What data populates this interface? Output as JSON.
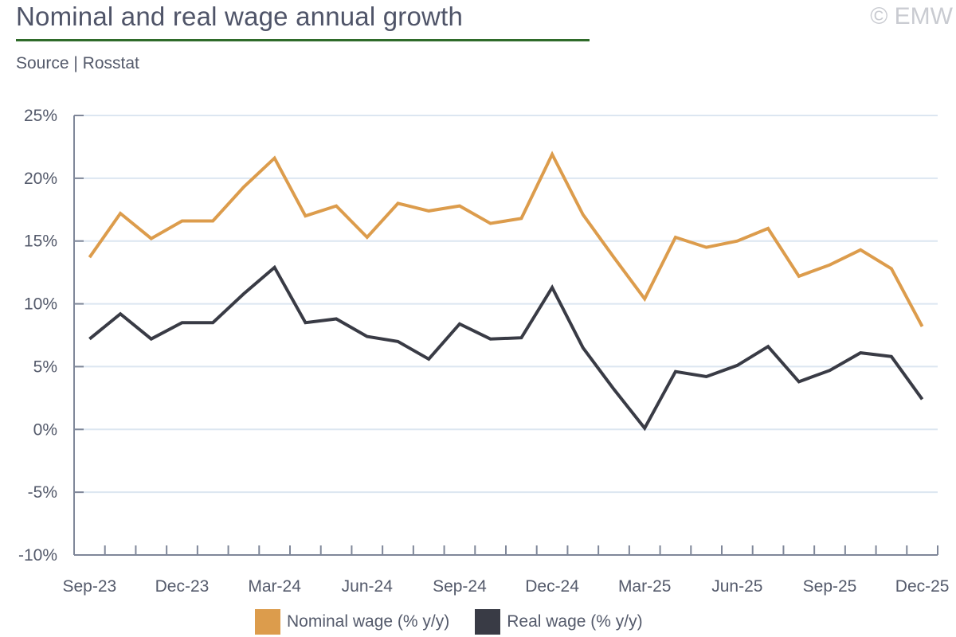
{
  "header": {
    "title": "Nominal and real wage annual growth",
    "source": "Source | Rosstat",
    "copyright": "© EMW"
  },
  "chart_data": {
    "type": "line",
    "title": "Nominal and real wage annual growth",
    "ylim": [
      -10,
      25
    ],
    "yticks": [
      25,
      20,
      15,
      10,
      5,
      0,
      -5,
      -10
    ],
    "ytick_labels": [
      "25%",
      "20%",
      "15%",
      "10%",
      "5%",
      "0%",
      "-5%",
      "-10%"
    ],
    "grid": true,
    "legend": "bottom",
    "x": [
      "Sep-23",
      "Oct-23",
      "Nov-23",
      "Dec-23",
      "Jan-24",
      "Feb-24",
      "Mar-24",
      "Apr-24",
      "May-24",
      "Jun-24",
      "Jul-24",
      "Aug-24",
      "Sep-24",
      "Oct-24",
      "Nov-24",
      "Dec-24",
      "Jan-25",
      "Feb-25",
      "Mar-25",
      "Apr-25",
      "May-25",
      "Jun-25",
      "Jul-25",
      "Aug-25",
      "Sep-25",
      "Oct-25",
      "Nov-25",
      "Dec-25"
    ],
    "xtick_labels": [
      "Sep-23",
      "Dec-23",
      "Mar-24",
      "Jun-24",
      "Sep-24",
      "Dec-24",
      "Mar-25",
      "Jun-25",
      "Sep-25",
      "Dec-25"
    ],
    "series": [
      {
        "name": "Nominal wage (% y/y)",
        "color": "#dc9c4c",
        "values": [
          13.7,
          17.2,
          15.2,
          16.6,
          16.6,
          19.3,
          21.6,
          17.0,
          17.8,
          15.3,
          18.0,
          17.4,
          17.8,
          16.4,
          16.8,
          21.9,
          17.1,
          13.7,
          10.4,
          15.3,
          14.5,
          15.0,
          16.0,
          12.2,
          13.1,
          14.3,
          12.8,
          8.2
        ]
      },
      {
        "name": "Real wage (% y/y)",
        "color": "#393b45",
        "values": [
          7.2,
          9.2,
          7.2,
          8.5,
          8.5,
          10.8,
          12.9,
          8.5,
          8.8,
          7.4,
          7.0,
          5.6,
          8.4,
          7.2,
          7.3,
          11.3,
          6.5,
          3.2,
          0.1,
          4.6,
          4.2,
          5.1,
          6.6,
          3.8,
          4.7,
          6.1,
          5.8,
          2.4
        ]
      }
    ]
  }
}
